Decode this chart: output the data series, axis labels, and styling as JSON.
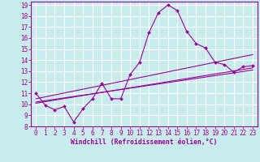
{
  "xlabel": "Windchill (Refroidissement éolien,°C)",
  "background_color": "#c8ecec",
  "line_color": "#990099",
  "grid_color": "#ffffff",
  "xlim": [
    -0.5,
    23.5
  ],
  "ylim": [
    8,
    19.3
  ],
  "yticks": [
    8,
    9,
    10,
    11,
    12,
    13,
    14,
    15,
    16,
    17,
    18,
    19
  ],
  "xticks": [
    0,
    1,
    2,
    3,
    4,
    5,
    6,
    7,
    8,
    9,
    10,
    11,
    12,
    13,
    14,
    15,
    16,
    17,
    18,
    19,
    20,
    21,
    22,
    23
  ],
  "curve1_x": [
    0,
    1,
    2,
    3,
    4,
    5,
    6,
    7,
    8,
    9,
    10,
    11,
    12,
    13,
    14,
    15,
    16,
    17,
    18,
    19,
    20,
    21,
    22,
    23
  ],
  "curve1_y": [
    11.0,
    9.9,
    9.5,
    9.8,
    8.4,
    9.6,
    10.5,
    11.9,
    10.5,
    10.5,
    12.7,
    13.8,
    16.5,
    18.3,
    19.0,
    18.5,
    16.6,
    15.5,
    15.1,
    13.8,
    13.6,
    12.9,
    13.4,
    13.5
  ],
  "curve2_x": [
    0,
    23
  ],
  "curve2_y": [
    10.5,
    14.5
  ],
  "curve3_x": [
    0,
    23
  ],
  "curve3_y": [
    10.2,
    13.1
  ],
  "curve4_x": [
    0,
    23
  ],
  "curve4_y": [
    10.1,
    13.3
  ],
  "tick_fontsize": 5.5,
  "xlabel_fontsize": 5.8
}
